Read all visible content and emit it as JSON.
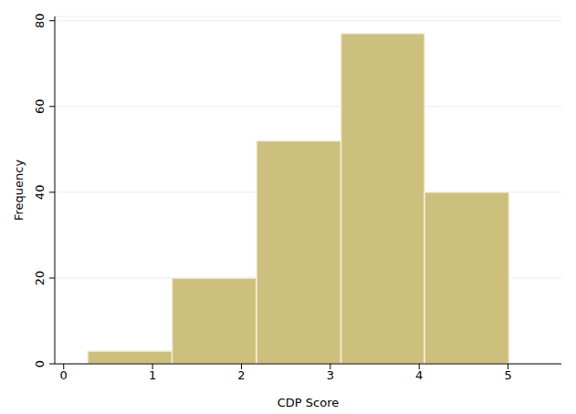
{
  "chart_data": {
    "type": "histogram",
    "x_label": "CDP Score",
    "y_label": "Frequency",
    "bins": [
      0.27,
      1.22,
      2.17,
      3.12,
      4.06,
      5.01
    ],
    "values": [
      3,
      20,
      52,
      77,
      40
    ],
    "color": "#ccc07c",
    "xlim": [
      -0.1,
      5.6
    ],
    "ylim": [
      0,
      81
    ],
    "xticks": [
      0,
      1,
      2,
      3,
      4,
      5
    ],
    "yticks": [
      0,
      20,
      40,
      60,
      80
    ],
    "grid": true
  }
}
